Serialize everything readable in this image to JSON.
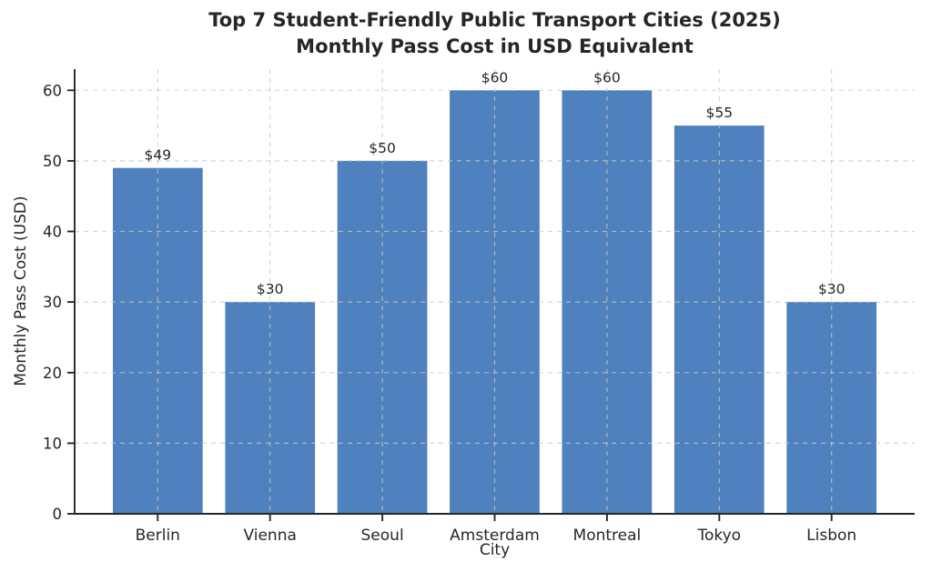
{
  "figure": {
    "title_line1": "Top 7 Student-Friendly Public Transport Cities (2025)",
    "title_line2": "Monthly Pass Cost in USD Equivalent"
  },
  "chart_data": {
    "type": "bar",
    "title": "Top 7 Student-Friendly Public Transport Cities (2025)\nMonthly Pass Cost in USD Equivalent",
    "categories": [
      "Berlin",
      "Vienna",
      "Seoul",
      "Amsterdam",
      "Montreal",
      "Tokyo",
      "Lisbon"
    ],
    "values": [
      49,
      30,
      50,
      60,
      60,
      55,
      30
    ],
    "bar_labels": [
      "$49",
      "$30",
      "$50",
      "$60",
      "$60",
      "$55",
      "$30"
    ],
    "xlabel": "City",
    "ylabel": "Monthly Pass Cost (USD)",
    "yticks": [
      0,
      10,
      20,
      30,
      40,
      50,
      60
    ],
    "ylim": [
      0,
      63
    ],
    "grid": true,
    "grid_style": "dashed",
    "legend": "none",
    "bar_color": "#4e81bd",
    "grid_color": "#c9c9c9",
    "axis_color": "#262626",
    "text_color": "#262626"
  }
}
